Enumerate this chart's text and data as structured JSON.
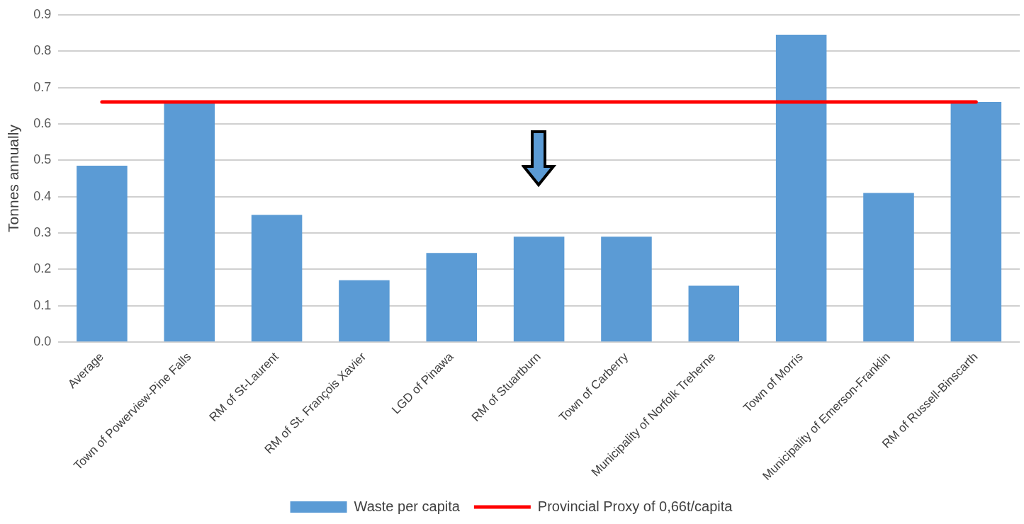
{
  "chart_data": {
    "type": "bar",
    "ylabel": "Tonnes annually",
    "categories": [
      "Average",
      "Town of Powerview-Pine Falls",
      "RM of St-Laurent",
      "RM of St. François Xavier",
      "LGD of Pinawa",
      "RM of Stuartburn",
      "Town of Carberry",
      "Municipality of Norfolk Treherne",
      "Town of Morris",
      "Municipality of Emerson-Franklin",
      "RM of Russell-Binscarth"
    ],
    "series": [
      {
        "name": "Waste per capita",
        "color": "#5b9bd5",
        "values": [
          0.485,
          0.66,
          0.35,
          0.17,
          0.245,
          0.29,
          0.29,
          0.155,
          0.845,
          0.41,
          0.66
        ]
      },
      {
        "name": "Provincial Proxy of 0,66t/capita",
        "type": "line",
        "color": "#ff0000",
        "marker": "none",
        "values": [
          0.66,
          0.66,
          0.66,
          0.66,
          0.66,
          0.66,
          0.66,
          0.66,
          0.66,
          0.66,
          0.66
        ]
      }
    ],
    "ylim": [
      0,
      0.9
    ],
    "yticks": [
      {
        "value": 0,
        "label": "0.0"
      },
      0.1,
      0.2,
      0.3,
      0.4,
      0.5,
      0.6,
      0.7,
      0.8,
      0.9
    ],
    "grid": "y",
    "legend": "bottom"
  }
}
